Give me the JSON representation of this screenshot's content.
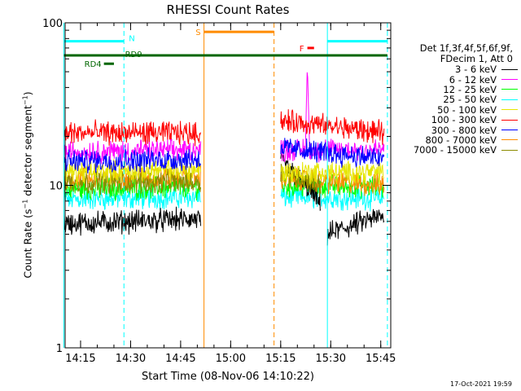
{
  "title": "RHESSI Count Rates",
  "xlabel": "Start Time (08-Nov-06 14:10:22)",
  "ylabel_prefix": "Count Rate (s",
  "ylabel_sup": "−1",
  "ylabel_mid": " detector segment",
  "ylabel_sup2": "−1",
  "ylabel_suffix": ")",
  "timestamp": "17-Oct-2021 19:59",
  "legend": {
    "header1": "Det 1f,3f,4f,5f,6f,9f,",
    "header2": "FDecim 1, Att 0"
  },
  "chart_data": {
    "type": "line",
    "title": "RHESSI Count Rates",
    "xlabel": "Start Time (08-Nov-06 14:10:22)",
    "ylabel": "Count Rate (s^-1 detector segment^-1)",
    "yscale": "log",
    "ylim": [
      1,
      100
    ],
    "xlim": [
      "14:10:22",
      "15:48:00"
    ],
    "x_ticks": [
      "14:15",
      "14:30",
      "14:45",
      "15:00",
      "15:15",
      "15:30",
      "15:45"
    ],
    "y_ticks": [
      "1",
      "10",
      "100"
    ],
    "series": [
      {
        "name": "3 - 6 keV",
        "color": "#000000",
        "segments": [
          {
            "start": "14:10",
            "end": "14:51",
            "start_value": 5.8,
            "end_value": 6.2
          },
          {
            "start": "15:15",
            "end": "15:27",
            "start_value": 14.0,
            "end_value": 7.5
          },
          {
            "start": "15:29",
            "end": "15:46",
            "start_value": 5.0,
            "end_value": 6.5
          }
        ]
      },
      {
        "name": "6 - 12 keV",
        "color": "#ff00ff",
        "segments": [
          {
            "start": "14:10",
            "end": "14:51",
            "start_value": 16.0,
            "end_value": 16.5
          },
          {
            "start": "15:15",
            "end": "15:46",
            "start_value": 16.5,
            "end_value": 16.5
          }
        ],
        "peak": {
          "time": "15:23",
          "value": 55
        }
      },
      {
        "name": "12 - 25 keV",
        "color": "#00ff00",
        "segments": [
          {
            "start": "14:10",
            "end": "14:51",
            "start_value": 9.5,
            "end_value": 9.8
          },
          {
            "start": "15:15",
            "end": "15:46",
            "start_value": 10.0,
            "end_value": 9.8
          }
        ]
      },
      {
        "name": "25 - 50 keV",
        "color": "#00ffff",
        "segments": [
          {
            "start": "14:10",
            "end": "14:51",
            "start_value": 8.2,
            "end_value": 8.5
          },
          {
            "start": "15:15",
            "end": "15:46",
            "start_value": 8.5,
            "end_value": 8.3
          }
        ]
      },
      {
        "name": "50 - 100 keV",
        "color": "#e6e600",
        "segments": [
          {
            "start": "14:10",
            "end": "14:51",
            "start_value": 12.0,
            "end_value": 12.5
          },
          {
            "start": "15:15",
            "end": "15:46",
            "start_value": 12.0,
            "end_value": 12.0
          }
        ]
      },
      {
        "name": "100 - 300 keV",
        "color": "#ff0000",
        "segments": [
          {
            "start": "14:10",
            "end": "14:51",
            "start_value": 21.0,
            "end_value": 21.0
          },
          {
            "start": "15:15",
            "end": "15:46",
            "start_value": 25.0,
            "end_value": 21.0
          }
        ]
      },
      {
        "name": "300 - 800 keV",
        "color": "#0000ff",
        "segments": [
          {
            "start": "14:10",
            "end": "14:51",
            "start_value": 14.0,
            "end_value": 14.5
          },
          {
            "start": "15:15",
            "end": "15:46",
            "start_value": 17.0,
            "end_value": 14.5
          }
        ]
      },
      {
        "name": "800 - 7000 keV",
        "color": "#ff8c00",
        "segments": [
          {
            "start": "14:10",
            "end": "14:51",
            "start_value": 11.0,
            "end_value": 11.2
          },
          {
            "start": "15:15",
            "end": "15:46",
            "start_value": 11.0,
            "end_value": 10.0
          }
        ]
      },
      {
        "name": "7000 - 15000 keV",
        "color": "#8b8b00",
        "segments": [
          {
            "start": "14:10",
            "end": "14:51",
            "start_value": 10.5,
            "end_value": 10.5
          },
          {
            "start": "15:15",
            "end": "15:27",
            "start_value": 12.0,
            "end_value": 10.0
          }
        ]
      }
    ],
    "flag_bars": [
      {
        "label": "N",
        "color": "#00ffff",
        "spans": [
          [
            "14:10",
            "14:28"
          ],
          [
            "15:29",
            "15:47"
          ]
        ],
        "value": 77
      },
      {
        "label": "S",
        "color": "#ff8c00",
        "spans": [
          [
            "14:52",
            "15:13"
          ]
        ],
        "value": 88
      },
      {
        "label": "F",
        "color": "#ff0000",
        "spans": [
          [
            "15:23",
            "15:25"
          ]
        ],
        "value": 70
      },
      {
        "label": "RD9",
        "color": "#006600",
        "spans": [
          [
            "14:10",
            "15:47"
          ]
        ],
        "value": 63
      },
      {
        "label": "RD4",
        "color": "#006600",
        "spans": [
          [
            "14:22",
            "14:25"
          ]
        ],
        "value": 56
      }
    ],
    "vertical_lines": [
      {
        "time": "14:10",
        "color": "#00ffff",
        "style": "solid"
      },
      {
        "time": "14:28",
        "color": "#00ffff",
        "style": "dashed"
      },
      {
        "time": "14:52",
        "color": "#ff8c00",
        "style": "solid"
      },
      {
        "time": "15:13",
        "color": "#ff8c00",
        "style": "dashed"
      },
      {
        "time": "15:29",
        "color": "#00ffff",
        "style": "solid"
      },
      {
        "time": "15:47",
        "color": "#00ffff",
        "style": "dashed"
      }
    ]
  }
}
